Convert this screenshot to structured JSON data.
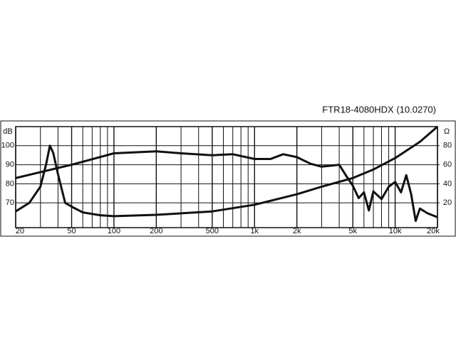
{
  "chart_data": {
    "type": "line",
    "title": "FTR18-4080HDX  (10.0270)",
    "y_label": "dB",
    "y2_label": "Ω",
    "xscale": "log",
    "xlim": [
      20,
      20000
    ],
    "xticks": [
      20,
      50,
      100,
      200,
      500,
      {
        "value": 1000,
        "label": "1k"
      },
      {
        "value": 2000,
        "label": "2k"
      },
      {
        "value": 5000,
        "label": "5k"
      },
      {
        "value": 10000,
        "label": "10k"
      },
      {
        "value": 20000,
        "label": "20k"
      }
    ],
    "xgrid_minor": [
      30,
      40,
      60,
      70,
      80,
      90,
      300,
      400,
      600,
      700,
      800,
      900,
      3000,
      4000,
      6000,
      7000,
      8000,
      9000
    ],
    "ylim": [
      57,
      110
    ],
    "yticks": [
      70,
      80,
      90,
      100
    ],
    "y2lim": [
      -6,
      100
    ],
    "y2ticks": [
      20,
      40,
      60,
      80
    ],
    "grid": true,
    "series": [
      {
        "color": "#111111",
        "x": [
          20,
          50,
          100,
          200,
          300,
          500,
          700,
          1000,
          1300,
          1600,
          2000,
          2500,
          3000,
          3500,
          4000,
          4500,
          5000,
          5500,
          6000,
          6500,
          7000,
          8000,
          9000,
          10000,
          11000,
          12000,
          13000,
          14000,
          15000,
          17000,
          20000
        ],
        "values": [
          83,
          90,
          96,
          97,
          96,
          95,
          95.5,
          93,
          93,
          95.5,
          94,
          90.5,
          89,
          89.5,
          90,
          84,
          79,
          72.5,
          75.5,
          66,
          76,
          72,
          78.5,
          81,
          75.5,
          84.5,
          74.5,
          60.5,
          67,
          64.5,
          62.5
        ]
      },
      {
        "color": "#111111",
        "axis": "y2",
        "x": [
          20,
          25,
          30,
          33,
          35,
          37,
          40,
          45,
          50,
          60,
          80,
          100,
          200,
          500,
          1000,
          2000,
          3000,
          5000,
          7000,
          10000,
          15000,
          20000
        ],
        "values": [
          11,
          20,
          37,
          61,
          80,
          72.5,
          50,
          20,
          16,
          10,
          7,
          6,
          7.4,
          11,
          18,
          29,
          37,
          46,
          55,
          67,
          84,
          100
        ]
      }
    ]
  }
}
